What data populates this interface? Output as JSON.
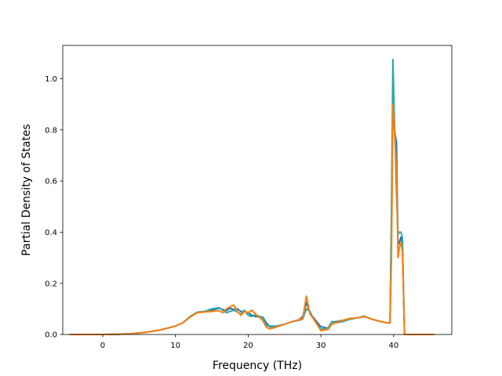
{
  "chart_data": {
    "type": "line",
    "title": "",
    "xlabel": "Frequency (THz)",
    "ylabel": "Partial Density of States",
    "xlim": [
      -5.5,
      48
    ],
    "ylim": [
      0,
      1.13
    ],
    "xticks": [
      0,
      10,
      20,
      30,
      40
    ],
    "yticks": [
      0.0,
      0.2,
      0.4,
      0.6,
      0.8,
      1.0
    ],
    "xtick_labels": [
      "0",
      "10",
      "20",
      "30",
      "40"
    ],
    "ytick_labels": [
      "0.0",
      "0.2",
      "0.4",
      "0.6",
      "0.8",
      "1.0"
    ],
    "grid": false,
    "legend": "none",
    "series": [
      {
        "color": "#1f77b4",
        "points": [
          [
            -4.5,
            0.0
          ],
          [
            0,
            0.0
          ],
          [
            2,
            0.001
          ],
          [
            4,
            0.003
          ],
          [
            6,
            0.009
          ],
          [
            8,
            0.018
          ],
          [
            10,
            0.033
          ],
          [
            11,
            0.045
          ],
          [
            12,
            0.07
          ],
          [
            13,
            0.087
          ],
          [
            14,
            0.09
          ],
          [
            15,
            0.095
          ],
          [
            16,
            0.103
          ],
          [
            17,
            0.093
          ],
          [
            17.5,
            0.103
          ],
          [
            18,
            0.098
          ],
          [
            18.5,
            0.1
          ],
          [
            19,
            0.09
          ],
          [
            19.5,
            0.09
          ],
          [
            20,
            0.085
          ],
          [
            20.5,
            0.075
          ],
          [
            21,
            0.07
          ],
          [
            22,
            0.068
          ],
          [
            22.5,
            0.045
          ],
          [
            23,
            0.03
          ],
          [
            24,
            0.033
          ],
          [
            25,
            0.04
          ],
          [
            26,
            0.05
          ],
          [
            27,
            0.058
          ],
          [
            27.5,
            0.07
          ],
          [
            28,
            0.125
          ],
          [
            28.5,
            0.085
          ],
          [
            29,
            0.065
          ],
          [
            30,
            0.03
          ],
          [
            31,
            0.025
          ],
          [
            31.5,
            0.05
          ],
          [
            32,
            0.05
          ],
          [
            33,
            0.055
          ],
          [
            34,
            0.06
          ],
          [
            35,
            0.065
          ],
          [
            36,
            0.07
          ],
          [
            37,
            0.06
          ],
          [
            38,
            0.052
          ],
          [
            39,
            0.046
          ],
          [
            39.5,
            0.045
          ],
          [
            39.7,
            0.4
          ],
          [
            39.9,
            0.955
          ],
          [
            40.1,
            0.8
          ],
          [
            40.4,
            0.75
          ],
          [
            40.6,
            0.35
          ],
          [
            40.8,
            0.36
          ],
          [
            41,
            0.38
          ],
          [
            41.2,
            0.35
          ],
          [
            41.5,
            0.0
          ],
          [
            45.5,
            0.0
          ]
        ]
      },
      {
        "color": "#2ca9a5",
        "points": [
          [
            -4.5,
            0.0
          ],
          [
            0,
            0.0
          ],
          [
            2,
            0.001
          ],
          [
            4,
            0.003
          ],
          [
            6,
            0.009
          ],
          [
            8,
            0.018
          ],
          [
            10,
            0.033
          ],
          [
            11,
            0.045
          ],
          [
            12,
            0.07
          ],
          [
            13,
            0.087
          ],
          [
            14,
            0.09
          ],
          [
            15,
            0.1
          ],
          [
            16,
            0.105
          ],
          [
            16.5,
            0.095
          ],
          [
            17,
            0.085
          ],
          [
            18,
            0.095
          ],
          [
            18.5,
            0.088
          ],
          [
            19,
            0.08
          ],
          [
            19.5,
            0.095
          ],
          [
            20,
            0.075
          ],
          [
            20.5,
            0.07
          ],
          [
            21,
            0.078
          ],
          [
            22,
            0.065
          ],
          [
            22.5,
            0.035
          ],
          [
            23,
            0.033
          ],
          [
            24,
            0.033
          ],
          [
            25,
            0.04
          ],
          [
            26,
            0.05
          ],
          [
            27,
            0.055
          ],
          [
            27.5,
            0.06
          ],
          [
            28,
            0.1
          ],
          [
            28.5,
            0.09
          ],
          [
            29,
            0.06
          ],
          [
            30,
            0.02
          ],
          [
            31,
            0.025
          ],
          [
            31.5,
            0.05
          ],
          [
            32,
            0.045
          ],
          [
            33,
            0.05
          ],
          [
            34,
            0.06
          ],
          [
            35,
            0.065
          ],
          [
            36,
            0.072
          ],
          [
            37,
            0.06
          ],
          [
            38,
            0.052
          ],
          [
            39,
            0.046
          ],
          [
            39.5,
            0.045
          ],
          [
            39.7,
            0.5
          ],
          [
            39.9,
            1.075
          ],
          [
            40.1,
            0.85
          ],
          [
            40.4,
            0.55
          ],
          [
            40.6,
            0.39
          ],
          [
            40.8,
            0.4
          ],
          [
            41,
            0.4
          ],
          [
            41.2,
            0.38
          ],
          [
            41.5,
            0.0
          ],
          [
            45.5,
            0.0
          ]
        ]
      },
      {
        "color": "#ff7f0e",
        "points": [
          [
            -4.5,
            0.0
          ],
          [
            0,
            0.0
          ],
          [
            2,
            0.001
          ],
          [
            4,
            0.003
          ],
          [
            6,
            0.009
          ],
          [
            8,
            0.018
          ],
          [
            10,
            0.033
          ],
          [
            11,
            0.045
          ],
          [
            12,
            0.068
          ],
          [
            13,
            0.085
          ],
          [
            14,
            0.088
          ],
          [
            15,
            0.09
          ],
          [
            16,
            0.093
          ],
          [
            16.5,
            0.085
          ],
          [
            17,
            0.1
          ],
          [
            18,
            0.115
          ],
          [
            18.5,
            0.09
          ],
          [
            19,
            0.075
          ],
          [
            19.5,
            0.09
          ],
          [
            20,
            0.085
          ],
          [
            20.5,
            0.095
          ],
          [
            21,
            0.08
          ],
          [
            22,
            0.055
          ],
          [
            22.5,
            0.028
          ],
          [
            23,
            0.022
          ],
          [
            24,
            0.03
          ],
          [
            25,
            0.04
          ],
          [
            26,
            0.05
          ],
          [
            27,
            0.058
          ],
          [
            27.5,
            0.06
          ],
          [
            28,
            0.15
          ],
          [
            28.5,
            0.08
          ],
          [
            29,
            0.06
          ],
          [
            30,
            0.015
          ],
          [
            31,
            0.02
          ],
          [
            31.5,
            0.04
          ],
          [
            32,
            0.045
          ],
          [
            33,
            0.055
          ],
          [
            34,
            0.063
          ],
          [
            35,
            0.065
          ],
          [
            36,
            0.07
          ],
          [
            37,
            0.06
          ],
          [
            38,
            0.052
          ],
          [
            39,
            0.046
          ],
          [
            39.5,
            0.045
          ],
          [
            39.7,
            0.3
          ],
          [
            39.9,
            0.9
          ],
          [
            40.1,
            0.8
          ],
          [
            40.4,
            0.65
          ],
          [
            40.6,
            0.3
          ],
          [
            40.8,
            0.34
          ],
          [
            41,
            0.36
          ],
          [
            41.2,
            0.32
          ],
          [
            41.5,
            0.0
          ],
          [
            45.5,
            0.0
          ]
        ]
      }
    ]
  }
}
